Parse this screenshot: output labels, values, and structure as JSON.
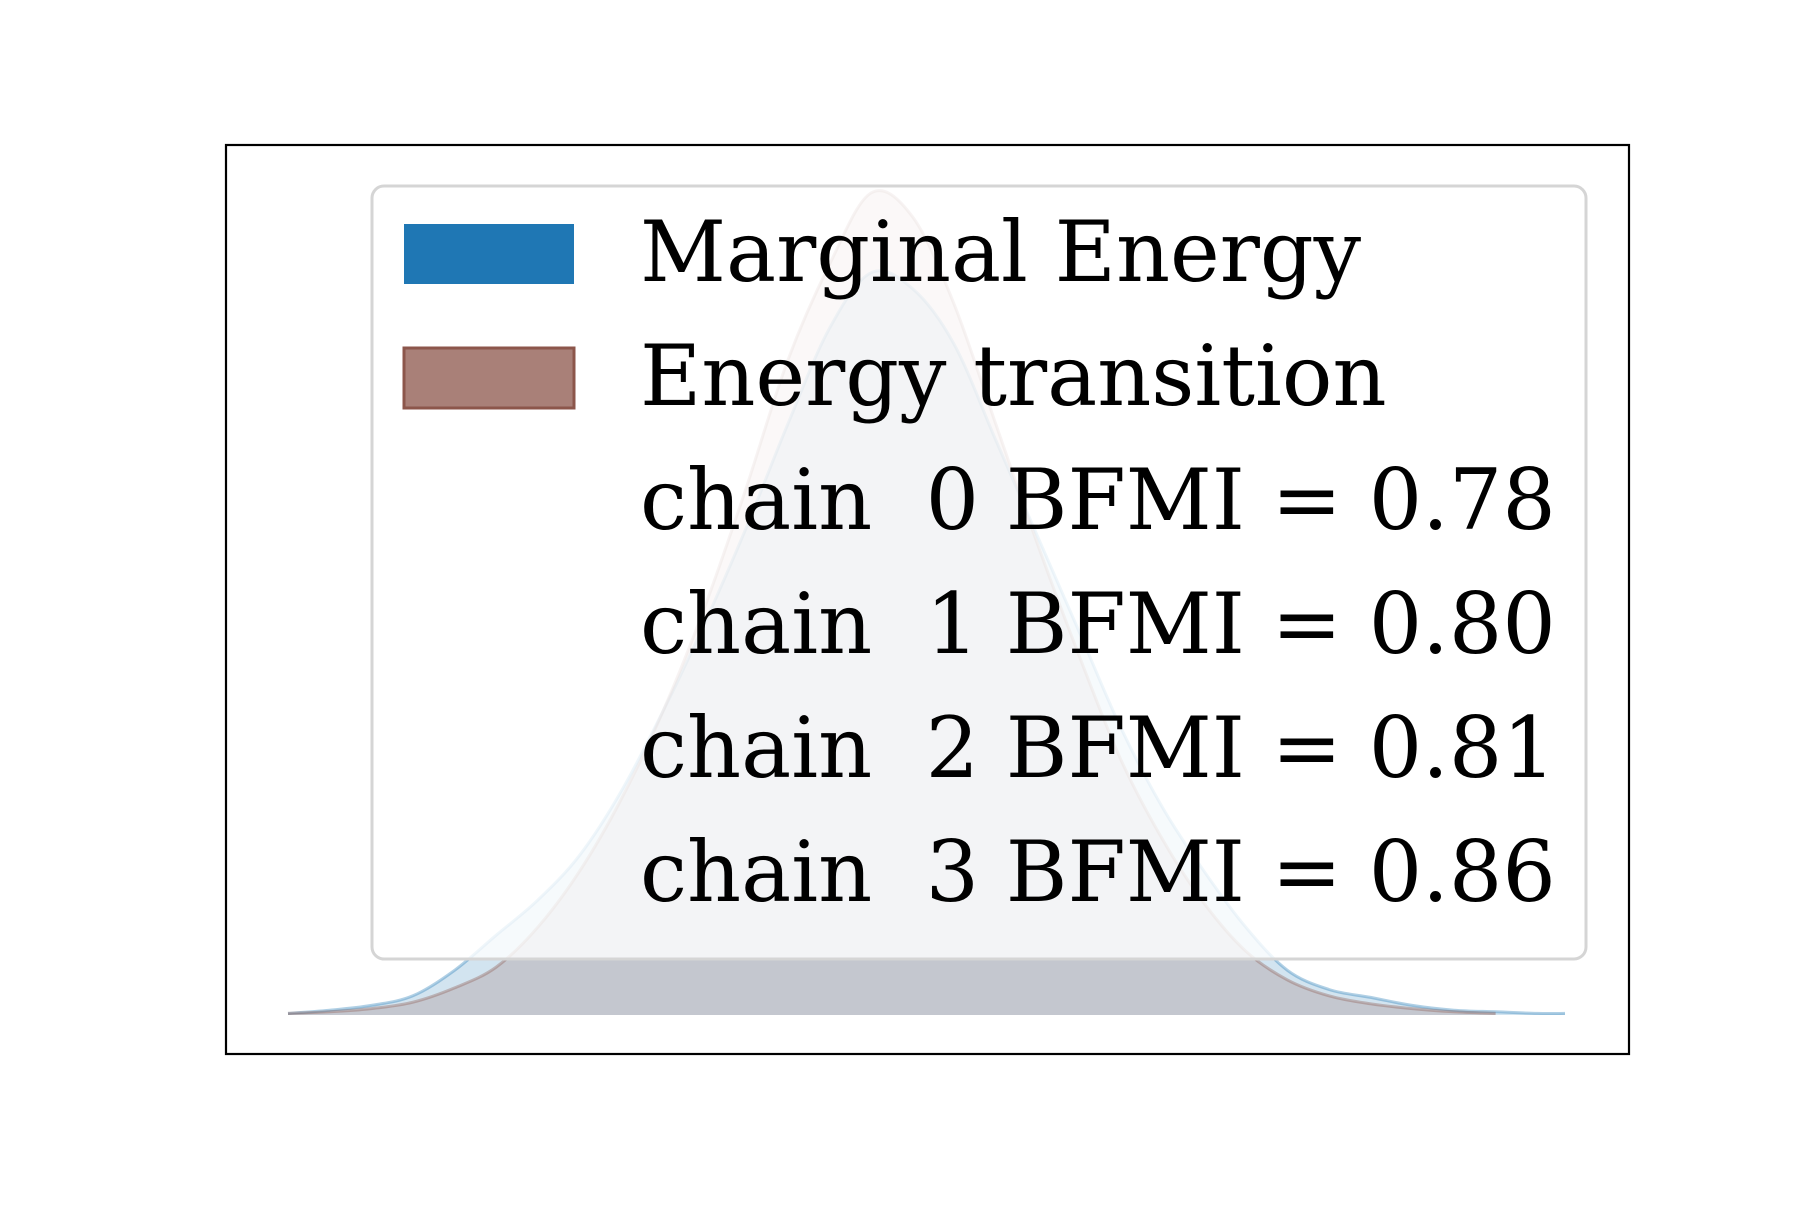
{
  "chart_data": {
    "type": "area",
    "title": "",
    "xlabel": "",
    "ylabel": "",
    "xlim": [
      -4.5,
      4.7
    ],
    "ylim": [
      0,
      0.52
    ],
    "grid": false,
    "axes_ticks_visible": false,
    "legend": {
      "placement": "upper-right",
      "entries": [
        {
          "label": "Marginal Energy",
          "color": "#1f77b4",
          "type": "patch"
        },
        {
          "label": "Energy transition",
          "color": "#8c564b",
          "type": "patch"
        },
        {
          "label": "chain  0 BFMI = 0.78",
          "type": "text"
        },
        {
          "label": "chain  1 BFMI = 0.80",
          "type": "text"
        },
        {
          "label": "chain  2 BFMI = 0.81",
          "type": "text"
        },
        {
          "label": "chain  3 BFMI = 0.86",
          "type": "text"
        }
      ]
    },
    "series": [
      {
        "name": "Marginal Energy",
        "color": "#1f77b4",
        "x": [
          -4.5,
          -4.2,
          -3.9,
          -3.6,
          -3.3,
          -3.0,
          -2.7,
          -2.4,
          -2.1,
          -1.8,
          -1.5,
          -1.2,
          -0.9,
          -0.6,
          -0.3,
          0.0,
          0.3,
          0.6,
          0.9,
          1.2,
          1.5,
          1.8,
          2.1,
          2.4,
          2.7,
          3.0,
          3.3,
          3.6,
          3.9,
          4.2,
          4.5,
          4.7
        ],
        "y": [
          0.001,
          0.003,
          0.006,
          0.012,
          0.028,
          0.05,
          0.072,
          0.1,
          0.14,
          0.19,
          0.245,
          0.305,
          0.37,
          0.43,
          0.465,
          0.455,
          0.42,
          0.36,
          0.3,
          0.24,
          0.18,
          0.13,
          0.09,
          0.055,
          0.028,
          0.016,
          0.011,
          0.006,
          0.003,
          0.002,
          0.001,
          0.001
        ]
      },
      {
        "name": "Energy transition",
        "color": "#8c564b",
        "x": [
          -4.5,
          -4.2,
          -3.9,
          -3.6,
          -3.3,
          -3.0,
          -2.7,
          -2.4,
          -2.1,
          -1.8,
          -1.5,
          -1.2,
          -0.9,
          -0.6,
          -0.3,
          0.0,
          0.3,
          0.6,
          0.9,
          1.2,
          1.5,
          1.8,
          2.1,
          2.4,
          2.7,
          3.0,
          3.3,
          3.6,
          3.9,
          4.2
        ],
        "y": [
          0.001,
          0.002,
          0.004,
          0.008,
          0.017,
          0.03,
          0.055,
          0.09,
          0.135,
          0.19,
          0.255,
          0.33,
          0.41,
          0.47,
          0.515,
          0.5,
          0.445,
          0.37,
          0.295,
          0.225,
          0.16,
          0.11,
          0.07,
          0.04,
          0.022,
          0.012,
          0.007,
          0.004,
          0.002,
          0.001
        ]
      }
    ]
  }
}
